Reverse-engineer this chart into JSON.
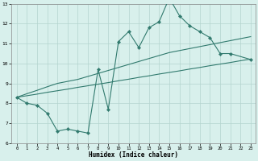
{
  "x_all": [
    0,
    1,
    2,
    3,
    4,
    5,
    6,
    7,
    8,
    9,
    10,
    11,
    12,
    13,
    14,
    15,
    16,
    17,
    18,
    19,
    20,
    21,
    22,
    23
  ],
  "y_main": [
    8.3,
    8.0,
    7.9,
    7.5,
    6.6,
    6.7,
    6.6,
    6.5,
    9.7,
    7.7,
    11.1,
    11.6,
    10.8,
    11.8,
    12.1,
    13.3,
    12.4,
    11.9,
    11.6,
    11.3,
    10.5,
    10.5,
    null,
    10.2
  ],
  "y_trend_upper": [
    8.3,
    8.48,
    8.65,
    8.83,
    9.0,
    9.1,
    9.2,
    9.35,
    9.5,
    9.65,
    9.8,
    9.95,
    10.1,
    10.25,
    10.4,
    10.55,
    10.65,
    10.75,
    10.85,
    10.95,
    11.05,
    11.15,
    11.25,
    11.35
  ],
  "y_trend_lower": [
    8.3,
    8.38,
    8.46,
    8.55,
    8.63,
    8.71,
    8.8,
    8.88,
    8.96,
    9.04,
    9.13,
    9.21,
    9.3,
    9.38,
    9.47,
    9.55,
    9.63,
    9.72,
    9.8,
    9.89,
    9.97,
    10.05,
    10.14,
    10.22
  ],
  "ylim": [
    6,
    13
  ],
  "xlim": [
    -0.5,
    23.5
  ],
  "yticks": [
    6,
    7,
    8,
    9,
    10,
    11,
    12,
    13
  ],
  "xticks": [
    0,
    1,
    2,
    3,
    4,
    5,
    6,
    7,
    8,
    9,
    10,
    11,
    12,
    13,
    14,
    15,
    16,
    17,
    18,
    19,
    20,
    21,
    22,
    23
  ],
  "xlabel": "Humidex (Indice chaleur)",
  "line_color": "#317a6e",
  "bg_color": "#d8f0ec",
  "grid_color": "#b4d4ce"
}
